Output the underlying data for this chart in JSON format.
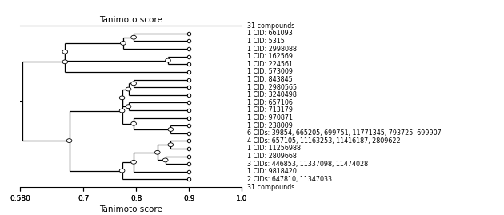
{
  "title": "Tanimoto score",
  "xmin": 0.58,
  "xmax": 1.0,
  "xticks": [
    0.58,
    0.7,
    0.8,
    0.9,
    1.0
  ],
  "xtick_labels": [
    "0.580",
    "0.7",
    "0.8",
    "0.9",
    "1.0"
  ],
  "labels": [
    "31 compounds",
    "1 CID: 661093",
    "1 CID: 5315",
    "1 CID: 2998088",
    "1 CID: 162569",
    "1 CID: 224561",
    "1 CID: 573009",
    "1 CID: 843845",
    "1 CID: 2980565",
    "1 CID: 3240498",
    "1 CID: 657106",
    "1 CID: 713179",
    "1 CID: 970871",
    "1 CID: 238009",
    "6 CIDs: 39854, 665205, 699751, 11771345, 793725, 699907",
    "4 CIDs: 657105, 11163253, 11416187, 2809622",
    "1 CID: 11256988",
    "1 CID: 2809668",
    "3 CIDs: 446853, 11337098, 11474028",
    "1 CID: 9818420",
    "2 CIDs: 647810, 11347033",
    "31 compounds"
  ],
  "figsize": [
    6.3,
    2.69
  ],
  "dpi": 100
}
